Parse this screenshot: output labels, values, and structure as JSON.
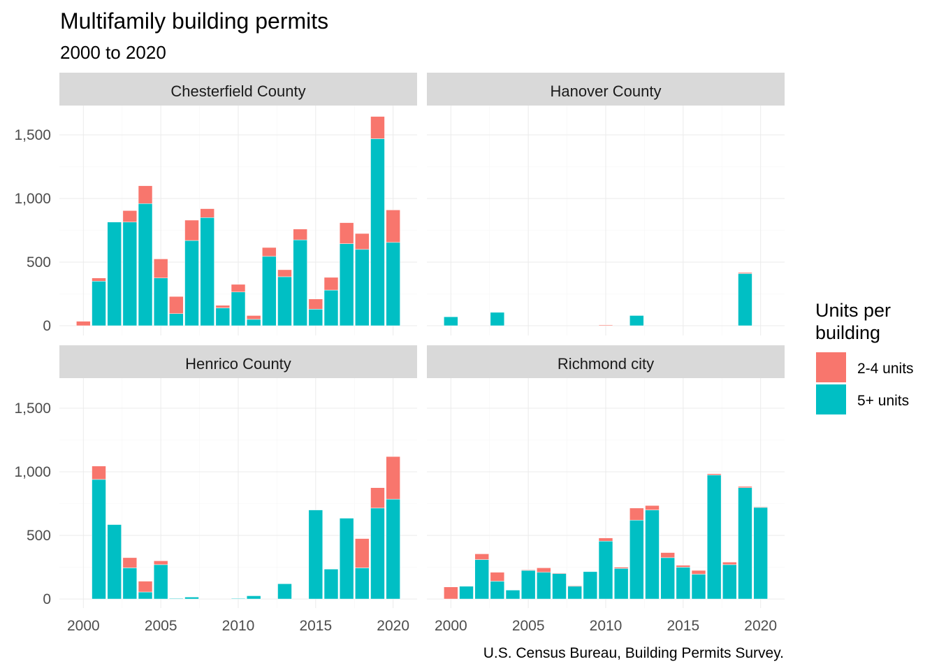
{
  "chart_data": {
    "type": "bar",
    "stacked": true,
    "title": "Multifamily building permits",
    "subtitle": "2000 to 2020",
    "caption": "U.S. Census Bureau, Building Permits Survey.",
    "legend": {
      "title": "Units per building",
      "title_lines": [
        "Units per",
        "building"
      ],
      "position": "right",
      "entries": [
        {
          "name": "2-4 units",
          "color": "#F8766D"
        },
        {
          "name": "5+ units",
          "color": "#00BFC4"
        }
      ]
    },
    "x": [
      2000,
      2001,
      2002,
      2003,
      2004,
      2005,
      2006,
      2007,
      2008,
      2009,
      2010,
      2011,
      2012,
      2013,
      2014,
      2015,
      2016,
      2017,
      2018,
      2019,
      2020
    ],
    "x_ticks": [
      "2000",
      "2005",
      "2010",
      "2015",
      "2020"
    ],
    "y_ticks": [
      "0",
      "500",
      "1,000",
      "1,500"
    ],
    "ylim": [
      0,
      1650
    ],
    "grid": true,
    "facets": [
      {
        "name": "Chesterfield County",
        "series": [
          {
            "name": "5+ units",
            "values": [
              0,
              350,
              815,
              815,
              960,
              375,
              95,
              670,
              850,
              140,
              265,
              50,
              545,
              385,
              675,
              130,
              280,
              645,
              600,
              1470,
              655
            ]
          },
          {
            "name": "2-4 units",
            "values": [
              35,
              25,
              0,
              90,
              140,
              150,
              135,
              160,
              70,
              20,
              60,
              30,
              70,
              55,
              85,
              80,
              100,
              165,
              125,
              175,
              255
            ]
          }
        ]
      },
      {
        "name": "Hanover County",
        "series": [
          {
            "name": "5+ units",
            "values": [
              70,
              0,
              0,
              105,
              0,
              0,
              0,
              0,
              0,
              0,
              0,
              0,
              80,
              0,
              0,
              0,
              0,
              0,
              0,
              410,
              0
            ]
          },
          {
            "name": "2-4 units",
            "values": [
              0,
              0,
              0,
              0,
              0,
              0,
              0,
              0,
              0,
              0,
              6,
              0,
              0,
              0,
              0,
              0,
              0,
              0,
              0,
              8,
              0
            ]
          }
        ]
      },
      {
        "name": "Henrico County",
        "series": [
          {
            "name": "5+ units",
            "values": [
              0,
              940,
              585,
              245,
              55,
              270,
              5,
              15,
              0,
              0,
              5,
              25,
              0,
              120,
              0,
              700,
              235,
              635,
              245,
              715,
              785
            ]
          },
          {
            "name": "2-4 units",
            "values": [
              0,
              105,
              0,
              80,
              85,
              30,
              0,
              0,
              0,
              0,
              0,
              0,
              0,
              0,
              0,
              0,
              0,
              0,
              230,
              160,
              335
            ]
          }
        ]
      },
      {
        "name": "Richmond city",
        "series": [
          {
            "name": "5+ units",
            "values": [
              0,
              100,
              310,
              140,
              70,
              225,
              210,
              200,
              100,
              215,
              455,
              240,
              620,
              700,
              325,
              250,
              195,
              975,
              270,
              875,
              720
            ]
          },
          {
            "name": "2-4 units",
            "values": [
              95,
              0,
              45,
              70,
              0,
              5,
              35,
              5,
              5,
              0,
              25,
              10,
              95,
              35,
              40,
              15,
              30,
              10,
              20,
              10,
              5
            ]
          }
        ]
      }
    ]
  }
}
